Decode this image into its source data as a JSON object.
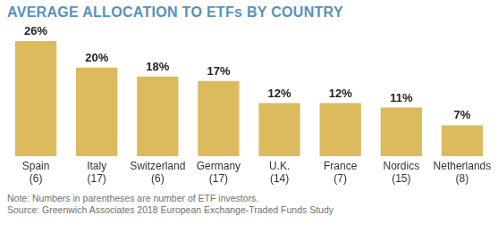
{
  "chart_data": {
    "type": "bar",
    "title": "AVERAGE ALLOCATION TO ETFs BY COUNTRY",
    "categories": [
      "Spain (6)",
      "Italy (17)",
      "Switzerland (6)",
      "Germany (17)",
      "U.K. (14)",
      "France (7)",
      "Nordics (15)",
      "Netherlands (8)"
    ],
    "values": [
      26,
      20,
      18,
      17,
      12,
      12,
      11,
      7
    ],
    "value_labels": [
      "26%",
      "20%",
      "18%",
      "17%",
      "12%",
      "12%",
      "11%",
      "7%"
    ],
    "color": "#dbbb5e",
    "ylim": [
      0,
      26
    ],
    "grid": false,
    "data_labels": true,
    "tick_labels": "x",
    "notes": [
      "Note: Numbers in parentheses are number of ETF investors.",
      "Source: Greenwich Associates 2018 European Exchange-Traded Funds Study"
    ]
  }
}
